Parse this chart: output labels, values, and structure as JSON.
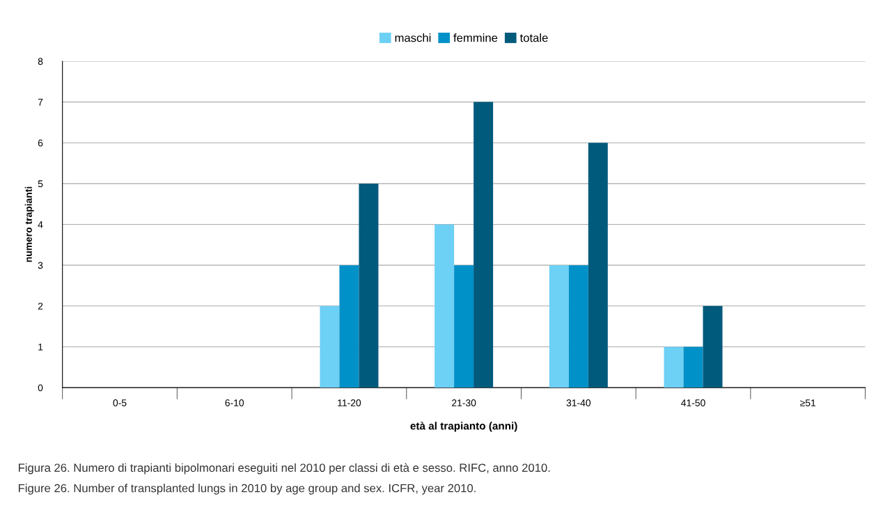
{
  "chart_data": {
    "type": "bar",
    "xlabel": "età al trapianto (anni)",
    "ylabel": "numero trapianti",
    "categories": [
      "0-5",
      "6-10",
      "11-20",
      "21-30",
      "31-40",
      "41-50",
      "≥51"
    ],
    "series": [
      {
        "name": "maschi",
        "color": "#6dd0f5",
        "values": [
          0,
          0,
          2,
          4,
          3,
          1,
          0
        ]
      },
      {
        "name": "femmine",
        "color": "#0091c8",
        "values": [
          0,
          0,
          3,
          3,
          3,
          1,
          0
        ]
      },
      {
        "name": "totale",
        "color": "#005a7c",
        "values": [
          0,
          0,
          5,
          7,
          6,
          2,
          0
        ]
      }
    ],
    "ylim": [
      0,
      8
    ],
    "yticks": [
      0,
      1,
      2,
      3,
      4,
      5,
      6,
      7,
      8
    ],
    "grid": "y",
    "legend": "top",
    "annotations": [
      "Figura 26. Numero di trapianti bipolmonari eseguiti nel 2010 per classi di età e sesso. RIFC, anno 2010.",
      "Figure 26. Number of transplanted lungs in 2010 by age group and sex. ICFR, year 2010."
    ]
  }
}
